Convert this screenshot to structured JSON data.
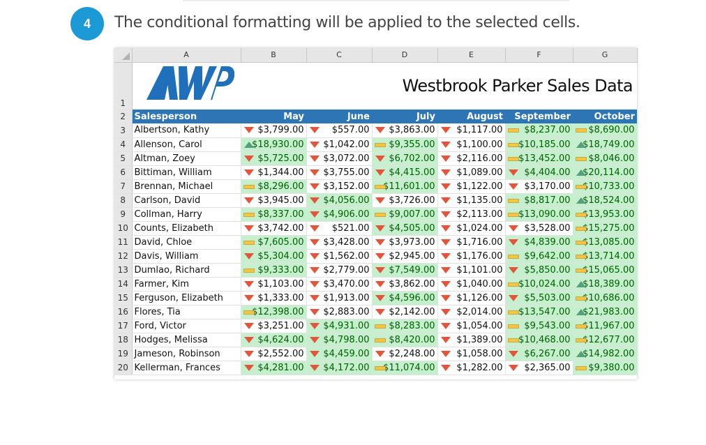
{
  "step": {
    "number": "4",
    "text": "The conditional formatting will be applied to the selected cells."
  },
  "sheet": {
    "title": "Westbrook Parker Sales Data",
    "logo_alt": "AWP",
    "columns": [
      "A",
      "B",
      "C",
      "D",
      "E",
      "F",
      "G"
    ],
    "header_row": [
      "Salesperson",
      "May",
      "June",
      "July",
      "August",
      "September",
      "October"
    ],
    "highlight_color": "#c6efce",
    "highlight_text_color": "#006100",
    "header_color": "#2e75b6",
    "icons": {
      "down": "red-down-triangle-icon",
      "flat": "yellow-dash-icon",
      "up": "green-up-triangle-icon"
    },
    "rows": [
      {
        "num": "3",
        "name": "Albertson, Kathy",
        "cells": [
          [
            "$3,799.00",
            "down",
            false
          ],
          [
            "$557.00",
            "down",
            false
          ],
          [
            "$3,863.00",
            "down",
            false
          ],
          [
            "$1,117.00",
            "down",
            false
          ],
          [
            "$8,237.00",
            "flat",
            true
          ],
          [
            "$8,690.00",
            "flat",
            true
          ]
        ]
      },
      {
        "num": "4",
        "name": "Allenson, Carol",
        "cells": [
          [
            "$18,930.00",
            "up",
            true
          ],
          [
            "$1,042.00",
            "down",
            false
          ],
          [
            "$9,355.00",
            "flat",
            true
          ],
          [
            "$1,100.00",
            "down",
            false
          ],
          [
            "$10,185.00",
            "flat",
            true
          ],
          [
            "$18,749.00",
            "up",
            true
          ]
        ]
      },
      {
        "num": "5",
        "name": "Altman, Zoey",
        "cells": [
          [
            "$5,725.00",
            "down",
            true
          ],
          [
            "$3,072.00",
            "down",
            false
          ],
          [
            "$6,702.00",
            "down",
            true
          ],
          [
            "$2,116.00",
            "down",
            false
          ],
          [
            "$13,452.00",
            "flat",
            true
          ],
          [
            "$8,046.00",
            "flat",
            true
          ]
        ]
      },
      {
        "num": "6",
        "name": "Bittiman, William",
        "cells": [
          [
            "$1,344.00",
            "down",
            false
          ],
          [
            "$3,755.00",
            "down",
            false
          ],
          [
            "$4,415.00",
            "down",
            true
          ],
          [
            "$1,089.00",
            "down",
            false
          ],
          [
            "$4,404.00",
            "down",
            true
          ],
          [
            "$20,114.00",
            "up",
            true
          ]
        ]
      },
      {
        "num": "7",
        "name": "Brennan, Michael",
        "cells": [
          [
            "$8,296.00",
            "flat",
            true
          ],
          [
            "$3,152.00",
            "down",
            false
          ],
          [
            "$11,601.00",
            "flat",
            true
          ],
          [
            "$1,122.00",
            "down",
            false
          ],
          [
            "$3,170.00",
            "down",
            false
          ],
          [
            "$10,733.00",
            "flat",
            true
          ]
        ]
      },
      {
        "num": "8",
        "name": "Carlson, David",
        "cells": [
          [
            "$3,945.00",
            "down",
            false
          ],
          [
            "$4,056.00",
            "down",
            true
          ],
          [
            "$3,726.00",
            "down",
            false
          ],
          [
            "$1,135.00",
            "down",
            false
          ],
          [
            "$8,817.00",
            "flat",
            true
          ],
          [
            "$18,524.00",
            "up",
            true
          ]
        ]
      },
      {
        "num": "9",
        "name": "Collman, Harry",
        "cells": [
          [
            "$8,337.00",
            "flat",
            true
          ],
          [
            "$4,906.00",
            "down",
            true
          ],
          [
            "$9,007.00",
            "flat",
            true
          ],
          [
            "$2,113.00",
            "down",
            false
          ],
          [
            "$13,090.00",
            "flat",
            true
          ],
          [
            "$13,953.00",
            "flat",
            true
          ]
        ]
      },
      {
        "num": "10",
        "name": "Counts, Elizabeth",
        "cells": [
          [
            "$3,742.00",
            "down",
            false
          ],
          [
            "$521.00",
            "down",
            false
          ],
          [
            "$4,505.00",
            "down",
            true
          ],
          [
            "$1,024.00",
            "down",
            false
          ],
          [
            "$3,528.00",
            "down",
            false
          ],
          [
            "$15,275.00",
            "flat",
            true
          ]
        ]
      },
      {
        "num": "11",
        "name": "David, Chloe",
        "cells": [
          [
            "$7,605.00",
            "flat",
            true
          ],
          [
            "$3,428.00",
            "down",
            false
          ],
          [
            "$3,973.00",
            "down",
            false
          ],
          [
            "$1,716.00",
            "down",
            false
          ],
          [
            "$4,839.00",
            "down",
            true
          ],
          [
            "$13,085.00",
            "flat",
            true
          ]
        ]
      },
      {
        "num": "12",
        "name": "Davis, William",
        "cells": [
          [
            "$5,304.00",
            "down",
            true
          ],
          [
            "$1,562.00",
            "down",
            false
          ],
          [
            "$2,945.00",
            "down",
            false
          ],
          [
            "$1,176.00",
            "down",
            false
          ],
          [
            "$9,642.00",
            "flat",
            true
          ],
          [
            "$13,714.00",
            "flat",
            true
          ]
        ]
      },
      {
        "num": "13",
        "name": "Dumlao, Richard",
        "cells": [
          [
            "$9,333.00",
            "flat",
            true
          ],
          [
            "$2,779.00",
            "down",
            false
          ],
          [
            "$7,549.00",
            "down",
            true
          ],
          [
            "$1,101.00",
            "down",
            false
          ],
          [
            "$5,850.00",
            "down",
            true
          ],
          [
            "$15,065.00",
            "flat",
            true
          ]
        ]
      },
      {
        "num": "14",
        "name": "Farmer, Kim",
        "cells": [
          [
            "$1,103.00",
            "down",
            false
          ],
          [
            "$3,470.00",
            "down",
            false
          ],
          [
            "$3,862.00",
            "down",
            false
          ],
          [
            "$1,040.00",
            "down",
            false
          ],
          [
            "$10,024.00",
            "flat",
            true
          ],
          [
            "$18,389.00",
            "up",
            true
          ]
        ]
      },
      {
        "num": "15",
        "name": "Ferguson, Elizabeth",
        "cells": [
          [
            "$1,333.00",
            "down",
            false
          ],
          [
            "$1,913.00",
            "down",
            false
          ],
          [
            "$4,596.00",
            "down",
            true
          ],
          [
            "$1,126.00",
            "down",
            false
          ],
          [
            "$5,503.00",
            "down",
            true
          ],
          [
            "$10,686.00",
            "flat",
            true
          ]
        ]
      },
      {
        "num": "16",
        "name": "Flores, Tia",
        "cells": [
          [
            "$12,398.00",
            "flat",
            true
          ],
          [
            "$2,883.00",
            "down",
            false
          ],
          [
            "$2,142.00",
            "down",
            false
          ],
          [
            "$2,014.00",
            "down",
            false
          ],
          [
            "$13,547.00",
            "flat",
            true
          ],
          [
            "$21,983.00",
            "up",
            true
          ]
        ]
      },
      {
        "num": "17",
        "name": "Ford, Victor",
        "cells": [
          [
            "$3,251.00",
            "down",
            false
          ],
          [
            "$4,931.00",
            "down",
            true
          ],
          [
            "$8,283.00",
            "flat",
            true
          ],
          [
            "$1,054.00",
            "down",
            false
          ],
          [
            "$9,543.00",
            "flat",
            true
          ],
          [
            "$11,967.00",
            "flat",
            true
          ]
        ]
      },
      {
        "num": "18",
        "name": "Hodges, Melissa",
        "cells": [
          [
            "$4,624.00",
            "down",
            true
          ],
          [
            "$4,798.00",
            "down",
            true
          ],
          [
            "$8,420.00",
            "flat",
            true
          ],
          [
            "$1,389.00",
            "down",
            false
          ],
          [
            "$10,468.00",
            "flat",
            true
          ],
          [
            "$12,677.00",
            "flat",
            true
          ]
        ]
      },
      {
        "num": "19",
        "name": "Jameson, Robinson",
        "cells": [
          [
            "$2,552.00",
            "down",
            false
          ],
          [
            "$4,459.00",
            "down",
            true
          ],
          [
            "$2,248.00",
            "down",
            false
          ],
          [
            "$1,058.00",
            "down",
            false
          ],
          [
            "$6,267.00",
            "down",
            true
          ],
          [
            "$14,982.00",
            "up",
            true
          ]
        ]
      },
      {
        "num": "20",
        "name": "Kellerman, Frances",
        "cells": [
          [
            "$4,281.00",
            "down",
            true
          ],
          [
            "$4,172.00",
            "down",
            true
          ],
          [
            "$11,074.00",
            "flat",
            true
          ],
          [
            "$1,282.00",
            "down",
            false
          ],
          [
            "$2,365.00",
            "down",
            false
          ],
          [
            "$9,380.00",
            "flat",
            true
          ]
        ]
      }
    ]
  }
}
